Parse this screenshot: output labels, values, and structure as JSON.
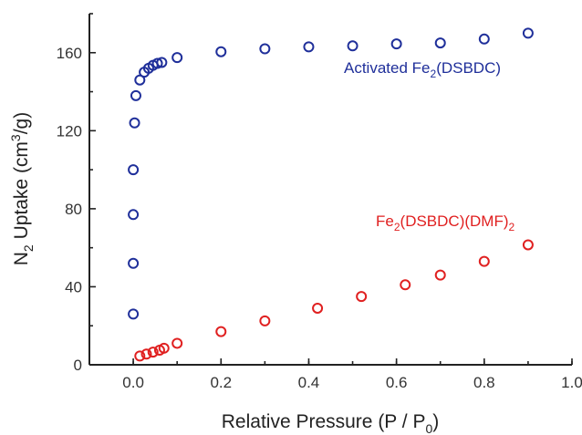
{
  "chart_data": {
    "type": "scatter",
    "title": "",
    "xlabel": {
      "main": "Relative Pressure (P / P",
      "sub": "0",
      "tail": ")"
    },
    "ylabel": {
      "pre": "N",
      "sub": "2",
      "mid": " Uptake (cm",
      "sup": "3",
      "tail": "/g)"
    },
    "xlim": [
      -0.1,
      1.0
    ],
    "ylim": [
      0,
      180
    ],
    "xticks": [
      0.0,
      0.2,
      0.4,
      0.6,
      0.8,
      1.0
    ],
    "xtick_labels": [
      "0.0",
      "0.2",
      "0.4",
      "0.6",
      "0.8",
      "1.0"
    ],
    "yticks": [
      0,
      40,
      80,
      120,
      160
    ],
    "ytick_labels": [
      "0",
      "40",
      "80",
      "120",
      "160"
    ],
    "grid": false,
    "legend": "none",
    "series": [
      {
        "label_parts": {
          "pre": "Activated Fe",
          "sub": "2",
          "tail": "(DSBDC)"
        },
        "color": "#1f2f9a",
        "marker": "open-circle",
        "x": [
          0.0,
          0.0,
          0.0,
          0.0,
          0.003,
          0.006,
          0.015,
          0.025,
          0.035,
          0.045,
          0.055,
          0.065,
          0.1,
          0.2,
          0.3,
          0.4,
          0.5,
          0.6,
          0.7,
          0.8,
          0.9
        ],
        "y": [
          26,
          52,
          77,
          100,
          124,
          138,
          146,
          150,
          152,
          153.5,
          154.5,
          155,
          157.5,
          160.5,
          162,
          163,
          163.5,
          164.5,
          165,
          167,
          170
        ]
      },
      {
        "label_parts": {
          "pre": "Fe",
          "sub": "2",
          "tail": "(DSBDC)(DMF)",
          "sub2": "2"
        },
        "color": "#e02020",
        "marker": "open-circle",
        "x": [
          0.015,
          0.03,
          0.045,
          0.06,
          0.07,
          0.1,
          0.2,
          0.3,
          0.42,
          0.52,
          0.62,
          0.7,
          0.8,
          0.9
        ],
        "y": [
          4.5,
          5.5,
          6.5,
          7.5,
          8.5,
          11,
          17,
          22.5,
          29,
          35,
          41,
          46,
          53,
          61.5
        ]
      }
    ]
  }
}
